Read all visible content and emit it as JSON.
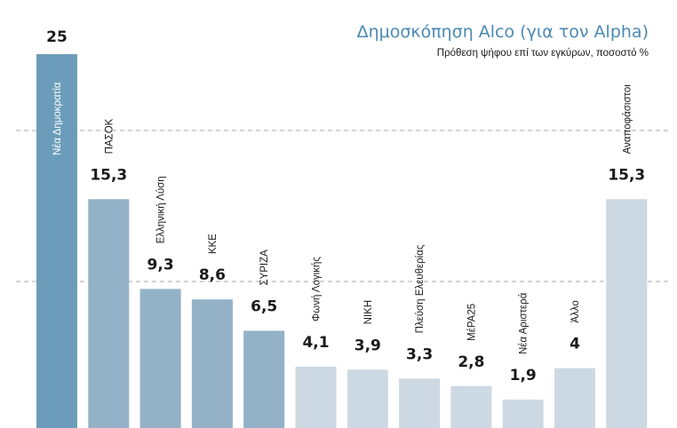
{
  "colors": {
    "title": "#4a8ab3",
    "text": "#1a1a1a",
    "grid": "#aaaaaa",
    "bar_dark": "#6b9dbb",
    "bar_mid": "#93b1c7",
    "bar_light": "#ccd9e3",
    "label_on_bar": "#ffffff"
  },
  "chart_data": {
    "type": "bar",
    "title": "Δημοσκόπηση Alco (για τον Alpha)",
    "subtitle": "Πρόθεση ψήφου επί των εγκύρων, ποσοστό %",
    "xlabel": "",
    "ylabel": "",
    "ylim": [
      0,
      25
    ],
    "grid": "dashed horizontal",
    "categories": [
      "Νέα Δημοκρατία",
      "ΠΑΣΟΚ",
      "Ελληνική Λύση",
      "ΚΚΕ",
      "ΣΥΡΙΖΑ",
      "Φωνή Λογικής",
      "ΝΙΚΗ",
      "Πλεύση Ελευθερίας",
      "ΜέΡΑ25",
      "Νέα Αριστερά",
      "Άλλο",
      "Αναποφάσιστοι"
    ],
    "value_labels": [
      "25",
      "15,3",
      "9,3",
      "8,6",
      "6,5",
      "4,1",
      "3,9",
      "3,3",
      "2,8",
      "1,9",
      "4",
      "15,3"
    ],
    "values": [
      25,
      15.3,
      9.3,
      8.6,
      6.5,
      4.1,
      3.9,
      3.3,
      2.8,
      1.9,
      4,
      15.3
    ],
    "tones": [
      "dark",
      "mid",
      "mid",
      "mid",
      "mid",
      "light",
      "light",
      "light",
      "light",
      "light",
      "light",
      "light"
    ]
  }
}
